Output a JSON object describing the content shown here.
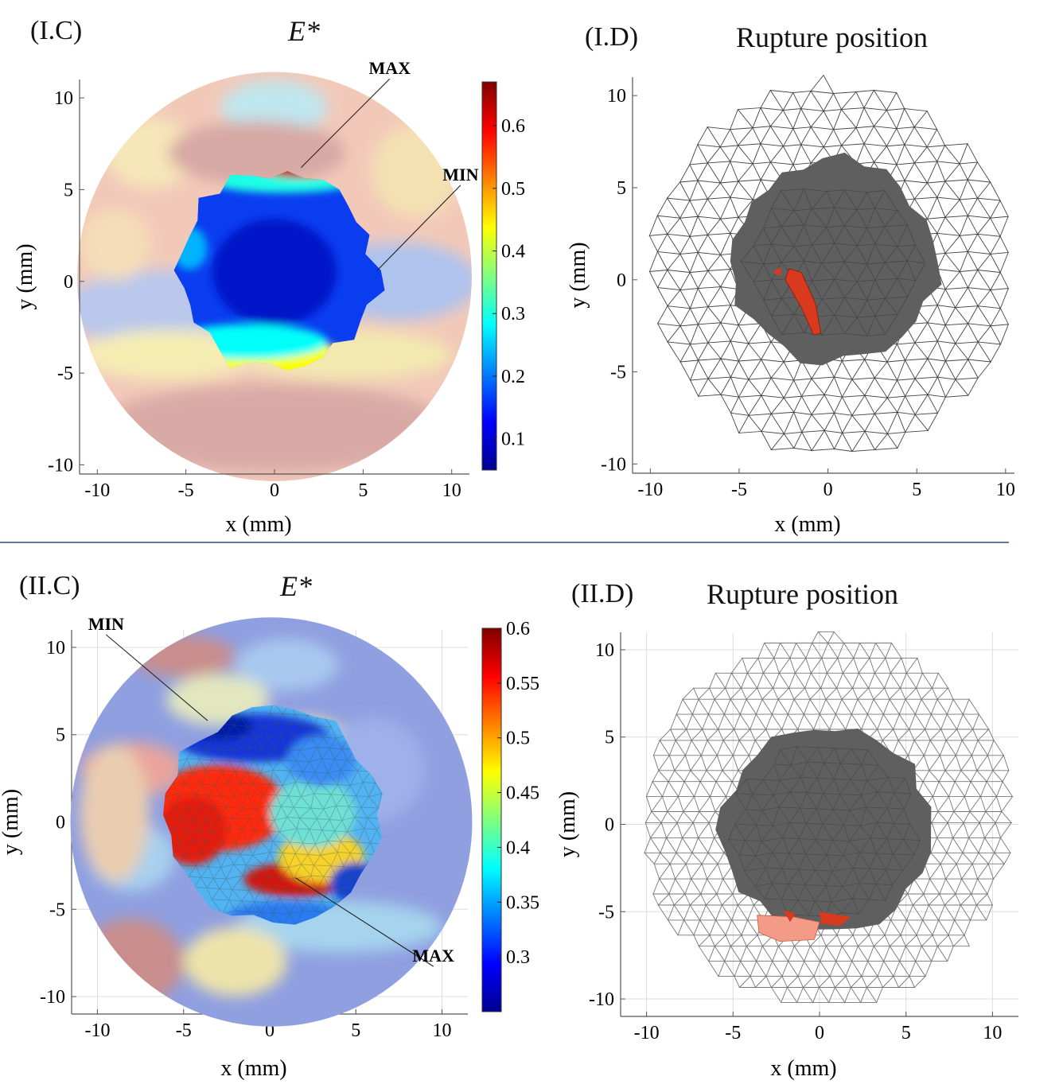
{
  "separator_color": "#5b7a9c",
  "chart_data": [
    {
      "id": "I.C",
      "type": "heatmap",
      "panel_label": "(I.C)",
      "title": "E*",
      "xlabel": "x (mm)",
      "ylabel": "y (mm)",
      "xlim": [
        -11,
        11
      ],
      "ylim": [
        -10.5,
        11
      ],
      "xticks": [
        -10,
        -5,
        0,
        5,
        10
      ],
      "yticks": [
        -10,
        -5,
        0,
        5,
        10
      ],
      "xtick_labels": [
        "-10",
        "-5",
        "0",
        "5",
        "10"
      ],
      "ytick_labels": [
        "-10",
        "-5",
        "0",
        "5",
        "10"
      ],
      "colorbar": {
        "ticks": [
          0.1,
          0.2,
          0.3,
          0.4,
          0.5,
          0.6
        ],
        "tick_labels": [
          "0.1",
          "0.2",
          "0.3",
          "0.4",
          "0.5",
          "0.6"
        ],
        "min": 0.05,
        "max": 0.67,
        "colormap": "jet"
      },
      "annotations": [
        {
          "text": "MAX",
          "point": [
            1.5,
            6.2
          ],
          "label_at": [
            6.5,
            11.3
          ]
        },
        {
          "text": "MIN",
          "point": [
            5.8,
            0.6
          ],
          "label_at": [
            10.5,
            5.5
          ]
        }
      ],
      "outer_disc_radius_mm": 10.5,
      "inner_region_radius_mm": 5.6,
      "grid": false
    },
    {
      "id": "I.D",
      "type": "mesh",
      "panel_label": "(I.D)",
      "title": "Rupture position",
      "xlabel": "x (mm)",
      "ylabel": "y (mm)",
      "xlim": [
        -11,
        10.5
      ],
      "ylim": [
        -10.5,
        11
      ],
      "xticks": [
        -10,
        -5,
        0,
        5,
        10
      ],
      "yticks": [
        -10,
        -5,
        0,
        5,
        10
      ],
      "xtick_labels": [
        "-10",
        "-5",
        "0",
        "5",
        "10"
      ],
      "ytick_labels": [
        "-10",
        "-5",
        "0",
        "5",
        "10"
      ],
      "inner_region_color": "#5f5f5f",
      "rupture_color": "#d93a1e",
      "rupture_center_mm": [
        -1.6,
        -0.3
      ],
      "grid": false
    },
    {
      "id": "II.C",
      "type": "heatmap",
      "panel_label": "(II.C)",
      "title": "E*",
      "xlabel": "x (mm)",
      "ylabel": "y (mm)",
      "xlim": [
        -11.5,
        11.5
      ],
      "ylim": [
        -11,
        11
      ],
      "xticks": [
        -10,
        -5,
        0,
        5,
        10
      ],
      "yticks": [
        -10,
        -5,
        0,
        5,
        10
      ],
      "xtick_labels": [
        "-10",
        "-5",
        "0",
        "5",
        "10"
      ],
      "ytick_labels": [
        "-10",
        "-5",
        "0",
        "5",
        "10"
      ],
      "colorbar": {
        "ticks": [
          0.3,
          0.35,
          0.4,
          0.45,
          0.5,
          0.55,
          0.6
        ],
        "tick_labels": [
          "0.3",
          "0.35",
          "0.4",
          "0.45",
          "0.5",
          "0.55",
          "0.6"
        ],
        "min": 0.25,
        "max": 0.6,
        "colormap": "jet"
      },
      "annotations": [
        {
          "text": "MIN",
          "point": [
            -3.6,
            5.8
          ],
          "label_at": [
            -9.5,
            11.0
          ]
        },
        {
          "text": "MAX",
          "point": [
            1.5,
            -3.2
          ],
          "label_at": [
            9.5,
            -8.0
          ]
        }
      ],
      "outer_disc_radius_mm": 11.0,
      "inner_region_radius_mm": 6.2,
      "grid": true
    },
    {
      "id": "II.D",
      "type": "mesh",
      "panel_label": "(II.D)",
      "title": "Rupture position",
      "xlabel": "x (mm)",
      "ylabel": "y (mm)",
      "xlim": [
        -11.5,
        11.5
      ],
      "ylim": [
        -11,
        11
      ],
      "xticks": [
        -10,
        -5,
        0,
        5,
        10
      ],
      "yticks": [
        -10,
        -5,
        0,
        5,
        10
      ],
      "xtick_labels": [
        "-10",
        "-5",
        "0",
        "5",
        "10"
      ],
      "ytick_labels": [
        "-10",
        "-5",
        "0",
        "5",
        "10"
      ],
      "inner_region_color": "#5f5f5f",
      "rupture_color": "#d93a1e",
      "rupture_center_mm": [
        -0.5,
        -6.2
      ],
      "grid": true
    }
  ]
}
